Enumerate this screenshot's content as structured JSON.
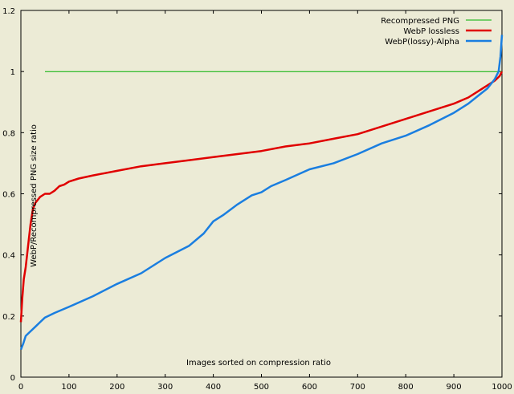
{
  "chart_data": {
    "type": "line",
    "title": "",
    "xlabel": "Images sorted on compression ratio",
    "ylabel": "WebP/Recompressed PNG size ratio",
    "xlim": [
      0,
      1000
    ],
    "ylim": [
      0,
      1.2
    ],
    "xticks": [
      0,
      100,
      200,
      300,
      400,
      500,
      600,
      700,
      800,
      900,
      1000
    ],
    "yticks": [
      0,
      0.2,
      0.4,
      0.6,
      0.8,
      1,
      1.2
    ],
    "xtick_labels": [
      "0",
      "100",
      "200",
      "300",
      "400",
      "500",
      "600",
      "700",
      "800",
      "900",
      "1000"
    ],
    "ytick_labels": [
      "0",
      "0.2",
      "0.4",
      "0.6",
      "0.8",
      "1",
      "1.2"
    ],
    "grid": false,
    "legend_position": "top-right",
    "series": [
      {
        "name": "Recompressed PNG",
        "color": "#00b000",
        "x": [
          0,
          1000
        ],
        "y": [
          1,
          1
        ]
      },
      {
        "name": "WebP lossless",
        "color": "#e00000",
        "x": [
          0,
          3,
          6,
          10,
          15,
          20,
          25,
          30,
          40,
          50,
          60,
          70,
          80,
          90,
          100,
          120,
          150,
          200,
          250,
          300,
          350,
          400,
          450,
          500,
          550,
          600,
          650,
          700,
          750,
          800,
          850,
          900,
          930,
          950,
          970,
          985,
          995,
          1000
        ],
        "y": [
          0.18,
          0.26,
          0.32,
          0.36,
          0.43,
          0.5,
          0.55,
          0.57,
          0.59,
          0.6,
          0.6,
          0.61,
          0.625,
          0.63,
          0.64,
          0.65,
          0.66,
          0.675,
          0.69,
          0.7,
          0.71,
          0.72,
          0.73,
          0.74,
          0.755,
          0.765,
          0.78,
          0.795,
          0.82,
          0.845,
          0.87,
          0.895,
          0.915,
          0.935,
          0.955,
          0.97,
          0.985,
          1.0
        ]
      },
      {
        "name": "WebP(lossy)-Alpha",
        "color": "#1a7ee0",
        "x": [
          0,
          5,
          10,
          20,
          30,
          40,
          50,
          70,
          100,
          150,
          200,
          250,
          300,
          350,
          380,
          400,
          420,
          450,
          480,
          500,
          520,
          550,
          600,
          650,
          700,
          750,
          800,
          850,
          900,
          930,
          950,
          970,
          985,
          993,
          997,
          1000
        ],
        "y": [
          0.09,
          0.11,
          0.135,
          0.15,
          0.165,
          0.18,
          0.195,
          0.21,
          0.23,
          0.265,
          0.305,
          0.34,
          0.39,
          0.43,
          0.47,
          0.51,
          0.53,
          0.565,
          0.595,
          0.605,
          0.625,
          0.645,
          0.68,
          0.7,
          0.73,
          0.765,
          0.79,
          0.825,
          0.865,
          0.895,
          0.92,
          0.945,
          0.975,
          1.0,
          1.05,
          1.12
        ]
      }
    ]
  }
}
